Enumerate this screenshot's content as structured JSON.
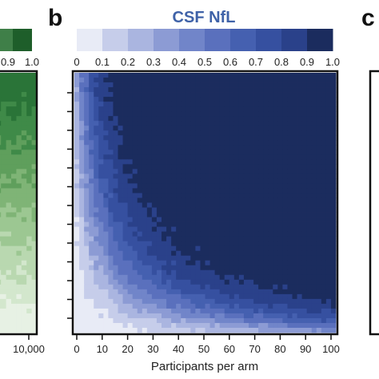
{
  "panels": {
    "left": {
      "letter": "",
      "colorbar_ticks": [
        "0.9",
        "1.0"
      ],
      "x_ticks": [
        "10,000"
      ]
    },
    "center": {
      "letter": "b"
    },
    "right": {
      "letter": "c"
    }
  },
  "colors": {
    "green_dark": "#1e5e2a",
    "blue_dark": "#1b2c5e",
    "blue_light": "#e8ebf6",
    "title_color": "#3f62a8"
  },
  "chart_data": {
    "type": "heatmap",
    "title": "CSF NfL",
    "xlabel": "Participants per arm",
    "ylabel": "",
    "xlim": [
      0,
      100
    ],
    "x_ticks": [
      0,
      10,
      20,
      30,
      40,
      50,
      60,
      70,
      80,
      90,
      100
    ],
    "x_tick_labels": [
      "0",
      "10",
      "20",
      "30",
      "40",
      "50",
      "60",
      "70",
      "80",
      "90",
      "100"
    ],
    "colorbar": {
      "range": [
        0,
        1.0
      ],
      "tick_labels": [
        "0",
        "0.1",
        "0.2",
        "0.3",
        "0.4",
        "0.5",
        "0.6",
        "0.7",
        "0.8",
        "0.9",
        "1.0"
      ],
      "colors": [
        "#e8ebf6",
        "#c6cdea",
        "#aab5e0",
        "#8c9bd4",
        "#7185c9",
        "#5a70bd",
        "#4560b0",
        "#3650a0",
        "#2a418a",
        "#1b2c5e"
      ]
    },
    "y_ticks_count": 13
  }
}
